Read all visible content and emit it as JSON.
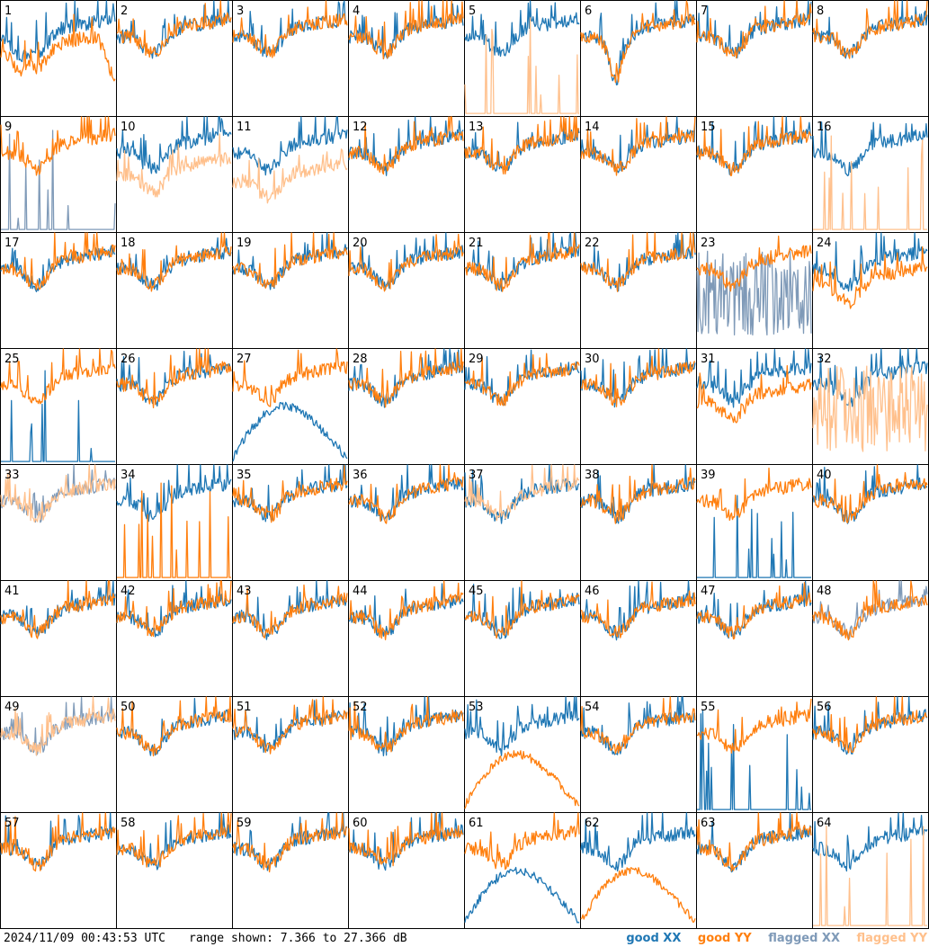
{
  "chart_data": {
    "type": "line",
    "layout": "8x8 small multiples",
    "panels": [
      {
        "id": "1",
        "xx": "good",
        "yy": "good",
        "shape": "dip-early",
        "yy_offset": -2.5,
        "yy_tail_drop": true
      },
      {
        "id": "2",
        "xx": "good",
        "yy": "good"
      },
      {
        "id": "3",
        "xx": "good",
        "yy": "good"
      },
      {
        "id": "4",
        "xx": "good",
        "yy": "good"
      },
      {
        "id": "5",
        "xx": "good",
        "yy": "flagged",
        "yy_style": "spikes"
      },
      {
        "id": "6",
        "xx": "good",
        "yy": "good",
        "shape": "deep-dip"
      },
      {
        "id": "7",
        "xx": "good",
        "yy": "good"
      },
      {
        "id": "8",
        "xx": "good",
        "yy": "good"
      },
      {
        "id": "9",
        "xx": "flagged",
        "yy": "good",
        "xx_style": "spikes"
      },
      {
        "id": "10",
        "xx": "good",
        "yy": "flagged",
        "yy_offset": -4
      },
      {
        "id": "11",
        "xx": "good",
        "yy": "flagged",
        "yy_offset": -5
      },
      {
        "id": "12",
        "xx": "good",
        "yy": "good"
      },
      {
        "id": "13",
        "xx": "good",
        "yy": "good"
      },
      {
        "id": "14",
        "xx": "good",
        "yy": "good"
      },
      {
        "id": "15",
        "xx": "good",
        "yy": "good"
      },
      {
        "id": "16",
        "xx": "good",
        "yy": "flagged",
        "yy_style": "spikes"
      },
      {
        "id": "17",
        "xx": "good",
        "yy": "good"
      },
      {
        "id": "18",
        "xx": "good",
        "yy": "good"
      },
      {
        "id": "19",
        "xx": "good",
        "yy": "good"
      },
      {
        "id": "20",
        "xx": "good",
        "yy": "good"
      },
      {
        "id": "21",
        "xx": "good",
        "yy": "good"
      },
      {
        "id": "22",
        "xx": "good",
        "yy": "good"
      },
      {
        "id": "23",
        "xx": "flagged",
        "yy": "good",
        "xx_style": "noise"
      },
      {
        "id": "24",
        "xx": "good",
        "yy": "good",
        "yy_offset": -3
      },
      {
        "id": "25",
        "xx": "good",
        "yy": "good",
        "xx_style": "spikes"
      },
      {
        "id": "26",
        "xx": "good",
        "yy": "good"
      },
      {
        "id": "27",
        "xx": "good",
        "yy": "good",
        "xx_style": "hump"
      },
      {
        "id": "28",
        "xx": "good",
        "yy": "good"
      },
      {
        "id": "29",
        "xx": "good",
        "yy": "good"
      },
      {
        "id": "30",
        "xx": "good",
        "yy": "good"
      },
      {
        "id": "31",
        "xx": "good",
        "yy": "good",
        "yy_offset": -3
      },
      {
        "id": "32",
        "xx": "good",
        "yy": "flagged",
        "yy_style": "noise"
      },
      {
        "id": "33",
        "xx": "flagged",
        "yy": "flagged"
      },
      {
        "id": "34",
        "xx": "good",
        "yy": "good",
        "yy_style": "spikes"
      },
      {
        "id": "35",
        "xx": "good",
        "yy": "good"
      },
      {
        "id": "36",
        "xx": "good",
        "yy": "good"
      },
      {
        "id": "37",
        "xx": "good",
        "yy": "flagged"
      },
      {
        "id": "38",
        "xx": "good",
        "yy": "good"
      },
      {
        "id": "39",
        "xx": "good",
        "yy": "good",
        "xx_style": "spikes"
      },
      {
        "id": "40",
        "xx": "good",
        "yy": "good"
      },
      {
        "id": "41",
        "xx": "good",
        "yy": "good"
      },
      {
        "id": "42",
        "xx": "good",
        "yy": "good"
      },
      {
        "id": "43",
        "xx": "good",
        "yy": "good"
      },
      {
        "id": "44",
        "xx": "good",
        "yy": "good"
      },
      {
        "id": "45",
        "xx": "good",
        "yy": "good"
      },
      {
        "id": "46",
        "xx": "good",
        "yy": "good"
      },
      {
        "id": "47",
        "xx": "good",
        "yy": "good"
      },
      {
        "id": "48",
        "xx": "flagged",
        "yy": "good"
      },
      {
        "id": "49",
        "xx": "flagged",
        "yy": "flagged"
      },
      {
        "id": "50",
        "xx": "good",
        "yy": "good"
      },
      {
        "id": "51",
        "xx": "good",
        "yy": "good"
      },
      {
        "id": "52",
        "xx": "good",
        "yy": "good"
      },
      {
        "id": "53",
        "xx": "good",
        "yy": "good",
        "yy_style": "hump"
      },
      {
        "id": "54",
        "xx": "good",
        "yy": "good"
      },
      {
        "id": "55",
        "xx": "good",
        "yy": "good",
        "xx_style": "spikes"
      },
      {
        "id": "56",
        "xx": "good",
        "yy": "good"
      },
      {
        "id": "57",
        "xx": "good",
        "yy": "good"
      },
      {
        "id": "58",
        "xx": "good",
        "yy": "good"
      },
      {
        "id": "59",
        "xx": "good",
        "yy": "good"
      },
      {
        "id": "60",
        "xx": "good",
        "yy": "good"
      },
      {
        "id": "61",
        "xx": "good",
        "yy": "good",
        "xx_style": "hump"
      },
      {
        "id": "62",
        "xx": "good",
        "yy": "good",
        "yy_style": "hump"
      },
      {
        "id": "63",
        "xx": "good",
        "yy": "good"
      },
      {
        "id": "64",
        "xx": "good",
        "yy": "flagged",
        "yy_style": "spikes"
      }
    ],
    "y_range_db": [
      7.366,
      27.366
    ],
    "legend": {
      "good_xx": "good XX",
      "good_yy": "good YY",
      "flagged_xx": "flagged XX",
      "flagged_yy": "flagged YY"
    },
    "colors": {
      "good_xx": "#1f77b4",
      "good_yy": "#ff7f0e",
      "flagged_xx": "#7f9ab8",
      "flagged_yy": "#ffc08c"
    }
  },
  "footer": {
    "timestamp": "2024/11/09 00:43:53 UTC",
    "range": "range shown: 7.366 to 27.366 dB"
  }
}
